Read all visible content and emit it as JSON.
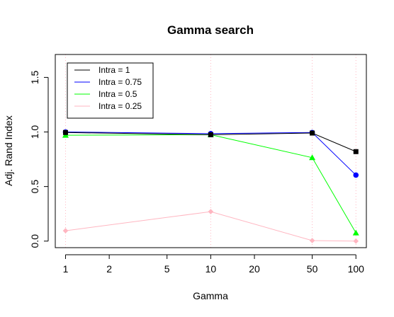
{
  "chart_data": {
    "type": "line",
    "title": "Gamma search",
    "xlabel": "Gamma",
    "ylabel": "Adj. Rand Index",
    "x_scale": "log",
    "x": [
      1,
      10,
      50,
      100
    ],
    "x_ticks": [
      1,
      2,
      5,
      10,
      20,
      50,
      100
    ],
    "x_tick_labels": [
      "1",
      "2",
      "5",
      "10",
      "20",
      "50",
      "100"
    ],
    "y_ticks": [
      0.0,
      0.5,
      1.0,
      1.5
    ],
    "y_tick_labels": [
      "0.0",
      "0.5",
      "1.0",
      "1.5"
    ],
    "xlim": [
      0.85,
      118
    ],
    "ylim": [
      -0.06,
      1.71
    ],
    "grid": "vertical dotted pink lines at gamma values",
    "grid_color": "#ffb6c1",
    "legend_position": "top-left",
    "series": [
      {
        "name": "Intra = 1",
        "color": "#000000",
        "marker": "square",
        "values": [
          0.995,
          0.975,
          0.99,
          0.82
        ]
      },
      {
        "name": "Intra = 0.75",
        "color": "#0000ff",
        "marker": "circle",
        "values": [
          1.0,
          0.985,
          0.995,
          0.605
        ]
      },
      {
        "name": "Intra = 0.5",
        "color": "#00ff00",
        "marker": "triangle",
        "values": [
          0.97,
          0.975,
          0.765,
          0.075
        ]
      },
      {
        "name": "Intra = 0.25",
        "color": "#ffb6c1",
        "marker": "diamond",
        "values": [
          0.095,
          0.27,
          0.005,
          0.0
        ]
      }
    ]
  }
}
